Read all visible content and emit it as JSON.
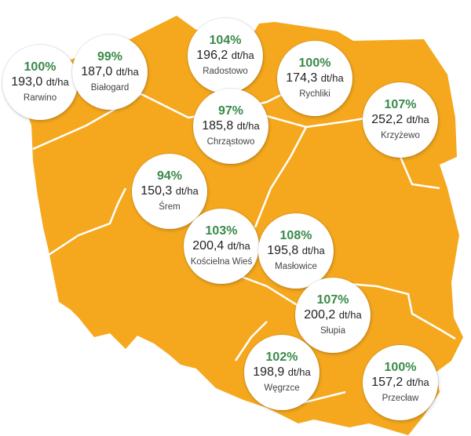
{
  "map": {
    "fill_color": "#f5a81d",
    "border_color": "#ffffff",
    "text_color_percent": "#3a8a4a"
  },
  "sites": [
    {
      "id": "rarwino",
      "percent": "100%",
      "value": "193,0",
      "unit": "dt/ha",
      "place": "Rarwino"
    },
    {
      "id": "bialogard",
      "percent": "99%",
      "value": "187,0",
      "unit": "dt/ha",
      "place": "Białogard"
    },
    {
      "id": "radostowo",
      "percent": "104%",
      "value": "196,2",
      "unit": "dt/ha",
      "place": "Radostowo"
    },
    {
      "id": "rychliki",
      "percent": "100%",
      "value": "174,3",
      "unit": "dt/ha",
      "place": "Rychliki"
    },
    {
      "id": "chrzastowo",
      "percent": "97%",
      "value": "185,8",
      "unit": "dt/ha",
      "place": "Chrząstowo"
    },
    {
      "id": "krzyzewo",
      "percent": "107%",
      "value": "252,2",
      "unit": "dt/ha",
      "place": "Krzyżewo"
    },
    {
      "id": "srem",
      "percent": "94%",
      "value": "150,3",
      "unit": "dt/ha",
      "place": "Śrem"
    },
    {
      "id": "koscielna-wies",
      "percent": "103%",
      "value": "200,4",
      "unit": "dt/ha",
      "place": "Kościelna Wieś"
    },
    {
      "id": "maslowice",
      "percent": "108%",
      "value": "195,8",
      "unit": "dt/ha",
      "place": "Masłowice"
    },
    {
      "id": "slupia",
      "percent": "107%",
      "value": "200,2",
      "unit": "dt/ha",
      "place": "Słupia"
    },
    {
      "id": "wegrzce",
      "percent": "102%",
      "value": "198,9",
      "unit": "dt/ha",
      "place": "Węgrzce"
    },
    {
      "id": "przeclaw",
      "percent": "100%",
      "value": "157,2",
      "unit": "dt/ha",
      "place": "Przecław"
    }
  ]
}
